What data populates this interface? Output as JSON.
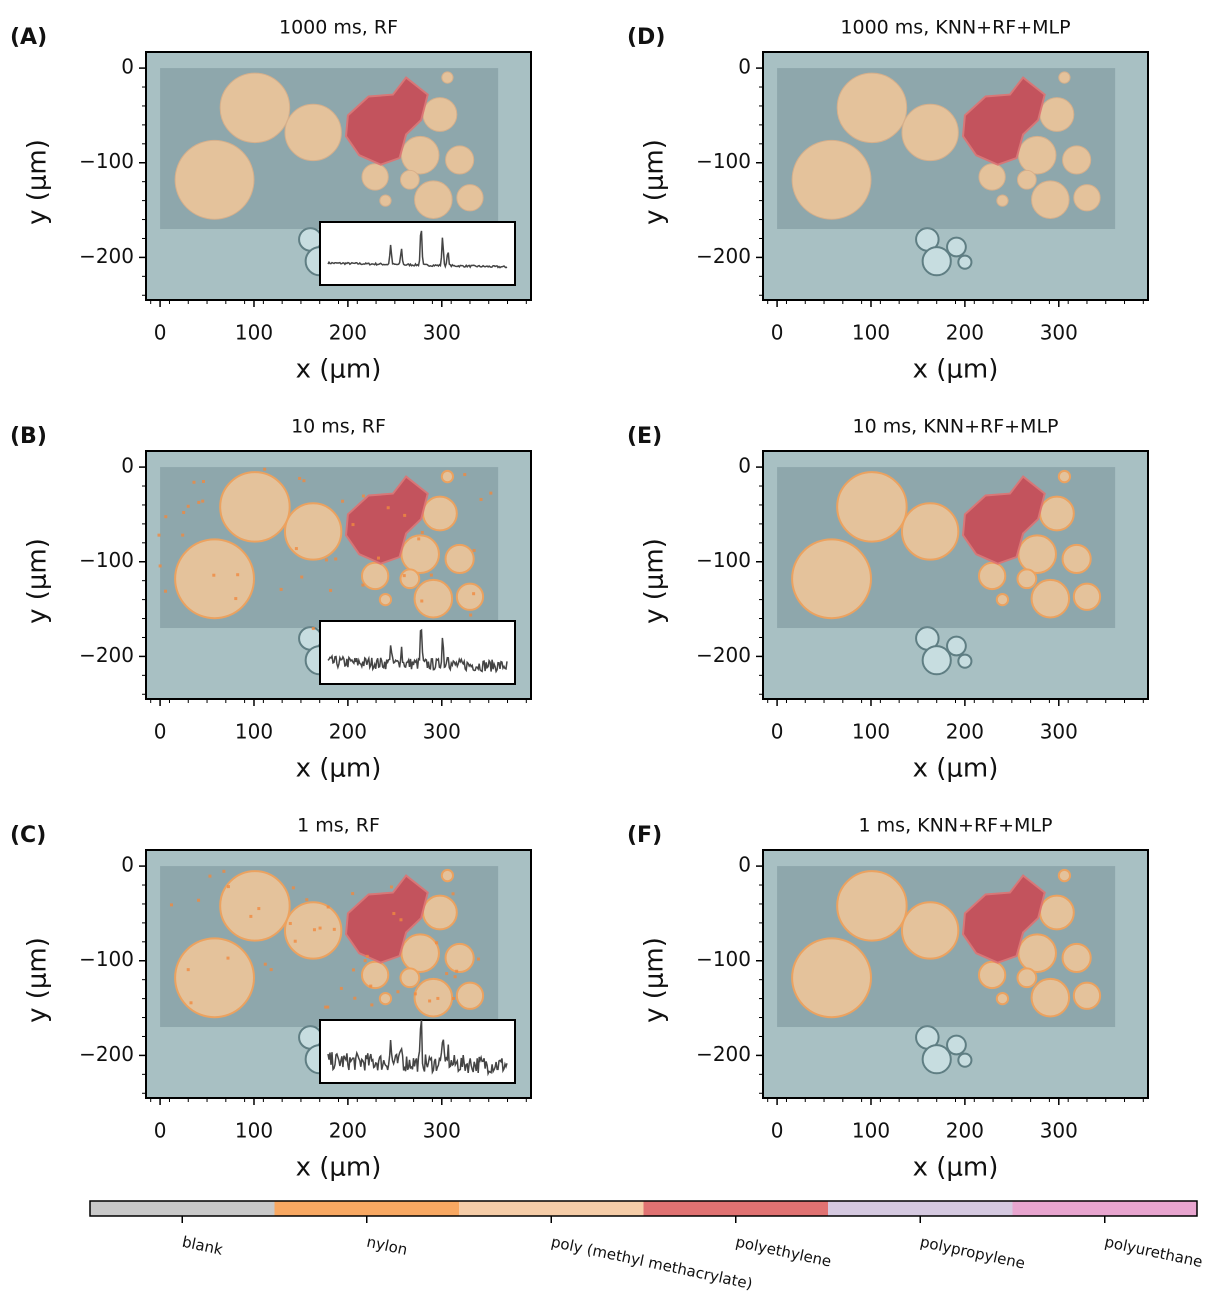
{
  "chart_data": [
    {
      "type": "image",
      "panel_label": "(A)",
      "title": "1000 ms, RF",
      "xlabel": "x (μm)",
      "ylabel": "y (μm)",
      "inset": true,
      "xlim": [
        -15,
        395
      ],
      "ylim": [
        -245,
        17
      ],
      "xticks": [
        0,
        100,
        200,
        300
      ],
      "yticks": [
        0,
        {
          "value": -100,
          "label": "−100"
        },
        {
          "value": -200,
          "label": "−200"
        }
      ]
    },
    {
      "type": "image",
      "panel_label": "(B)",
      "title": "10 ms, RF",
      "xlabel": "x (μm)",
      "ylabel": "y (μm)",
      "inset": true,
      "xlim": [
        -15,
        395
      ],
      "ylim": [
        -245,
        17
      ],
      "xticks": [
        0,
        100,
        200,
        300
      ],
      "yticks": [
        0,
        {
          "value": -100,
          "label": "−100"
        },
        {
          "value": -200,
          "label": "−200"
        }
      ]
    },
    {
      "type": "image",
      "panel_label": "(C)",
      "title": "1 ms, RF",
      "xlabel": "x (μm)",
      "ylabel": "y (μm)",
      "inset": true,
      "xlim": [
        -15,
        395
      ],
      "ylim": [
        -245,
        17
      ],
      "xticks": [
        0,
        100,
        200,
        300
      ],
      "yticks": [
        0,
        {
          "value": -100,
          "label": "−100"
        },
        {
          "value": -200,
          "label": "−200"
        }
      ]
    },
    {
      "type": "image",
      "panel_label": "(D)",
      "title": "1000 ms, KNN+RF+MLP",
      "xlabel": "x (μm)",
      "ylabel": "y (μm)",
      "inset": false,
      "xlim": [
        -15,
        395
      ],
      "ylim": [
        -245,
        17
      ],
      "xticks": [
        0,
        100,
        200,
        300
      ],
      "yticks": [
        0,
        {
          "value": -100,
          "label": "−100"
        },
        {
          "value": -200,
          "label": "−200"
        }
      ]
    },
    {
      "type": "image",
      "panel_label": "(E)",
      "title": "10 ms, KNN+RF+MLP",
      "xlabel": "x (μm)",
      "ylabel": "y (μm)",
      "inset": false,
      "xlim": [
        -15,
        395
      ],
      "ylim": [
        -245,
        17
      ],
      "xticks": [
        0,
        100,
        200,
        300
      ],
      "yticks": [
        0,
        {
          "value": -100,
          "label": "−100"
        },
        {
          "value": -200,
          "label": "−200"
        }
      ]
    },
    {
      "type": "image",
      "panel_label": "(F)",
      "title": "1 ms, KNN+RF+MLP",
      "xlabel": "x (μm)",
      "ylabel": "y (μm)",
      "inset": false,
      "xlim": [
        -15,
        395
      ],
      "ylim": [
        -245,
        17
      ],
      "xticks": [
        0,
        100,
        200,
        300
      ],
      "yticks": [
        0,
        {
          "value": -100,
          "label": "−100"
        },
        {
          "value": -200,
          "label": "−200"
        }
      ]
    },
    {
      "type": "colorbar",
      "categories": [
        "blank",
        "nylon",
        "poly (methyl methacrylate)",
        "polyethylene",
        "polypropylene",
        "polyurethane"
      ],
      "colors": [
        "#c9c9c9",
        "#f8a862",
        "#f6cda8",
        "#e07272",
        "#d5c9e0",
        "#e8a5cf"
      ]
    }
  ]
}
